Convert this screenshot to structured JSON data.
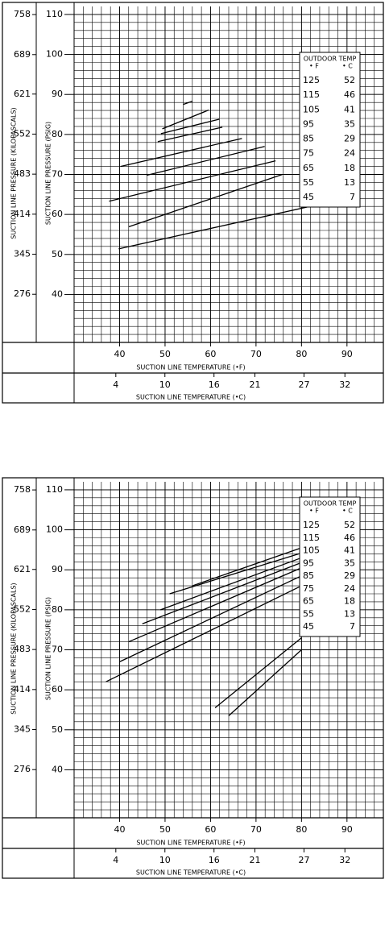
{
  "chart_data": [
    {
      "type": "line",
      "xlabel": "SUCTION LINE TEMPERATURE (•F)",
      "x2label": "SUCTION LINE TEMPERATURE (•C)",
      "ylabel": "SUCTION LINE PRESSURE (PSIG)",
      "y2label": "SUCTION LINE PRESSURE (KILOPASCALS)",
      "xlim": [
        30,
        98
      ],
      "xticks": [
        40,
        50,
        60,
        70,
        80,
        90
      ],
      "x2lim": [
        -1.1,
        36.7
      ],
      "x2ticks": [
        4,
        10,
        16,
        21,
        27,
        32
      ],
      "ylim": [
        28,
        112
      ],
      "yticks": [
        40,
        50,
        60,
        70,
        80,
        90,
        100,
        110
      ],
      "y2lim": [
        193,
        772
      ],
      "y2ticks": [
        276,
        345,
        414,
        483,
        552,
        621,
        689,
        758
      ],
      "grid": true,
      "legend": {
        "title": "OUTDOOR TEMP",
        "columns": [
          "• F",
          "• C"
        ],
        "rows": [
          [
            "125",
            "52"
          ],
          [
            "115",
            "46"
          ],
          [
            "105",
            "41"
          ],
          [
            "95",
            "35"
          ],
          [
            "85",
            "29"
          ],
          [
            "75",
            "24"
          ],
          [
            "65",
            "18"
          ],
          [
            "55",
            "13"
          ],
          [
            "45",
            "7"
          ]
        ]
      },
      "series": [
        {
          "color": "#000000",
          "x": [
            54,
            56
          ],
          "values": [
            87.5,
            88.3
          ]
        },
        {
          "color": "#000000",
          "x": [
            49.4,
            59.6
          ],
          "values": [
            81.4,
            86.1
          ]
        },
        {
          "color": "#000000",
          "x": [
            49.1,
            61.9
          ],
          "values": [
            80.2,
            83.8
          ]
        },
        {
          "color": "#000000",
          "x": [
            48.4,
            62.6
          ],
          "values": [
            78.2,
            81.8
          ]
        },
        {
          "color": "#000000",
          "x": [
            40.2,
            66.9
          ],
          "values": [
            72,
            79
          ]
        },
        {
          "color": "#000000",
          "x": [
            46,
            71.9
          ],
          "values": [
            69.8,
            77
          ]
        },
        {
          "color": "#000000",
          "x": [
            37.7,
            74.3
          ],
          "values": [
            63.3,
            73.4
          ]
        },
        {
          "color": "#000000",
          "x": [
            42,
            75.8
          ],
          "values": [
            56.9,
            70
          ]
        },
        {
          "color": "#000000",
          "x": [
            39.8,
            83.8
          ],
          "values": [
            51.4,
            62.5
          ]
        }
      ]
    },
    {
      "type": "line",
      "xlabel": "SUCTION LINE TEMPERATURE (•F)",
      "x2label": "SUCTION LINE TEMPERATURE (•C)",
      "ylabel": "SUCTION LINE PRESSURE (PSIG)",
      "y2label": "SUCTION LINE PRESSURE (KILOPASCALS)",
      "xlim": [
        30,
        98
      ],
      "xticks": [
        40,
        50,
        60,
        70,
        80,
        90
      ],
      "x2lim": [
        -1.1,
        36.7
      ],
      "x2ticks": [
        4,
        10,
        16,
        21,
        27,
        32
      ],
      "ylim": [
        28,
        112
      ],
      "yticks": [
        40,
        50,
        60,
        70,
        80,
        90,
        100,
        110
      ],
      "y2lim": [
        193,
        772
      ],
      "y2ticks": [
        276,
        345,
        414,
        483,
        552,
        621,
        689,
        758
      ],
      "grid": true,
      "legend": {
        "title": "OUTDOOR TEMP",
        "columns": [
          "• F",
          "• C"
        ],
        "rows": [
          [
            "125",
            "52"
          ],
          [
            "115",
            "46"
          ],
          [
            "105",
            "41"
          ],
          [
            "95",
            "35"
          ],
          [
            "85",
            "29"
          ],
          [
            "75",
            "24"
          ],
          [
            "65",
            "18"
          ],
          [
            "55",
            "13"
          ],
          [
            "45",
            "7"
          ]
        ]
      },
      "series": [
        {
          "color": "#000000",
          "x": [
            56,
            80
          ],
          "values": [
            86,
            95.5
          ]
        },
        {
          "color": "#000000",
          "x": [
            51,
            80
          ],
          "values": [
            84,
            94.2
          ]
        },
        {
          "color": "#000000",
          "x": [
            49,
            80
          ],
          "values": [
            80,
            93
          ]
        },
        {
          "color": "#000000",
          "x": [
            45,
            80
          ],
          "values": [
            76.5,
            91.8
          ]
        },
        {
          "color": "#000000",
          "x": [
            42,
            80
          ],
          "values": [
            72,
            90.5
          ]
        },
        {
          "color": "#000000",
          "x": [
            40,
            80
          ],
          "values": [
            67,
            88.5
          ]
        },
        {
          "color": "#000000",
          "x": [
            37,
            80
          ],
          "values": [
            62,
            86
          ]
        },
        {
          "color": "#000000",
          "x": [
            61,
            80
          ],
          "values": [
            55.5,
            73
          ]
        },
        {
          "color": "#000000",
          "x": [
            64,
            80
          ],
          "values": [
            53.5,
            70
          ]
        }
      ]
    }
  ]
}
